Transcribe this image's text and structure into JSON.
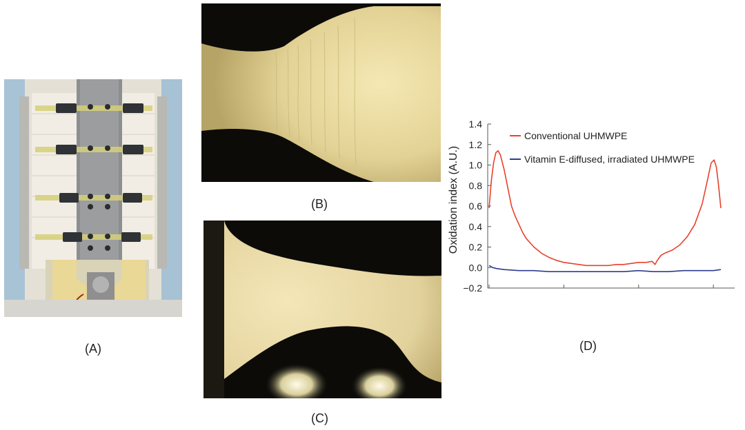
{
  "figure": {
    "panel_a_label": "(A)",
    "panel_b_label": "(B)",
    "panel_c_label": "(C)",
    "panel_d_label": "(D)"
  },
  "chart_data": {
    "type": "line",
    "title": "",
    "xlabel": "",
    "ylabel": "Oxidation index (A.U.)",
    "ylim": [
      -0.2,
      1.4
    ],
    "yticks": [
      "1.4",
      "1.2",
      "1.0",
      "0.8",
      "0.6",
      "0.4",
      "0.2",
      "0.0",
      "−0.2"
    ],
    "ytick_values": [
      1.4,
      1.2,
      1.0,
      0.8,
      0.6,
      0.4,
      0.2,
      0.0,
      -0.2
    ],
    "xlim": [
      0,
      31
    ],
    "x_tick_values": [
      0,
      10,
      20,
      30
    ],
    "grid": false,
    "legend_position": "top-left",
    "series": [
      {
        "name": "Conventional UHMWPE",
        "color": "#e8402a",
        "x": [
          0,
          0.3,
          0.6,
          0.9,
          1.2,
          1.5,
          2.0,
          2.5,
          3.0,
          3.5,
          4.0,
          4.5,
          5.0,
          6.0,
          7.0,
          8.0,
          9.0,
          10.0,
          11.0,
          12.0,
          13.0,
          14.0,
          15.0,
          16.0,
          17.0,
          18.0,
          19.0,
          20.0,
          21.0,
          21.8,
          22.2,
          22.5,
          23.0,
          23.5,
          24.5,
          25.5,
          26.5,
          27.5,
          28.5,
          29.2,
          29.7,
          30.1,
          30.4,
          30.7,
          31.0
        ],
        "y": [
          0.58,
          0.85,
          1.02,
          1.12,
          1.14,
          1.1,
          0.96,
          0.78,
          0.6,
          0.5,
          0.42,
          0.34,
          0.28,
          0.2,
          0.14,
          0.1,
          0.07,
          0.05,
          0.04,
          0.03,
          0.02,
          0.02,
          0.02,
          0.02,
          0.03,
          0.03,
          0.04,
          0.05,
          0.05,
          0.06,
          0.03,
          0.07,
          0.12,
          0.14,
          0.17,
          0.22,
          0.3,
          0.42,
          0.62,
          0.85,
          1.02,
          1.05,
          0.98,
          0.8,
          0.58
        ]
      },
      {
        "name": "Vitamin E-diffused, irradiated UHMWPE",
        "color": "#2d3a8c",
        "x": [
          0,
          0.5,
          1.0,
          2.0,
          4.0,
          6.0,
          8.0,
          10.0,
          12.0,
          14.0,
          16.0,
          18.0,
          20.0,
          22.0,
          24.0,
          26.0,
          28.0,
          30.0,
          31.0
        ],
        "y": [
          0.02,
          0.0,
          -0.01,
          -0.02,
          -0.03,
          -0.03,
          -0.04,
          -0.04,
          -0.04,
          -0.04,
          -0.04,
          -0.04,
          -0.03,
          -0.04,
          -0.04,
          -0.03,
          -0.03,
          -0.03,
          -0.02
        ]
      }
    ]
  }
}
